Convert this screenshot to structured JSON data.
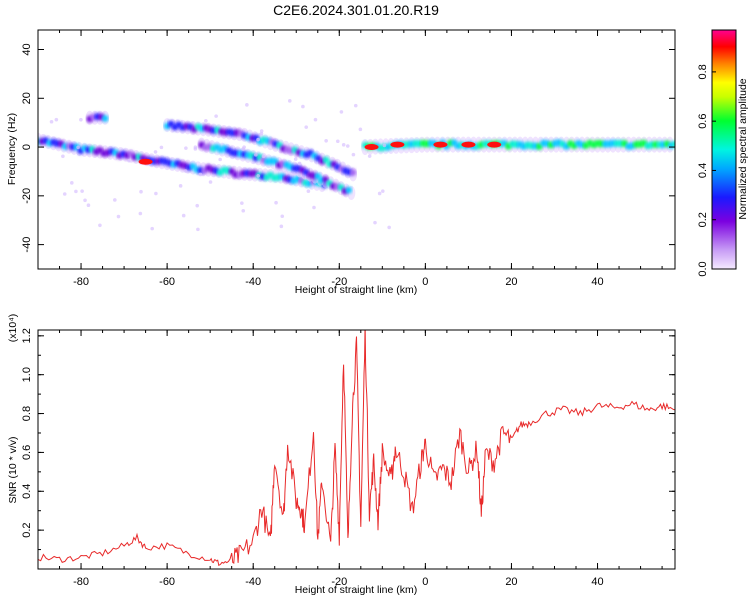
{
  "chart_data": [
    {
      "type": "heatmap",
      "title": "C2E6.2024.301.01.20.R19",
      "xlabel": "Height of straight line (km)",
      "ylabel": "Frequency (Hz)",
      "xlim": [
        -90,
        58
      ],
      "ylim": [
        -50,
        48
      ],
      "xticks": [
        -80,
        -60,
        -40,
        -20,
        0,
        20,
        40
      ],
      "yticks": [
        -40,
        -20,
        0,
        20,
        40
      ],
      "grid": false,
      "colorbar": {
        "label": "Normalized spectral amplitude",
        "range": [
          0.0,
          0.97
        ],
        "ticks": [
          0.0,
          0.2,
          0.4,
          0.6,
          0.8
        ],
        "colors": [
          "#f2e6ff",
          "#8a2be2",
          "#1a1aff",
          "#00e5ff",
          "#00ff40",
          "#ffff00",
          "#ff8000",
          "#ff0000",
          "#ff00b0"
        ]
      },
      "ridges": [
        {
          "x": [
            -90,
            -80,
            -70,
            -62,
            -52,
            -42,
            -34,
            -28,
            -23
          ],
          "y": [
            3,
            -1,
            -3,
            -6,
            -9,
            -11,
            -12,
            -14,
            -16
          ]
        },
        {
          "x": [
            -60,
            -50,
            -42,
            -35,
            -27,
            -20,
            -16
          ],
          "y": [
            9,
            7,
            5,
            1,
            -3,
            -8,
            -12
          ]
        },
        {
          "x": [
            -52,
            -45,
            -38,
            -30,
            -23,
            -17
          ],
          "y": [
            1,
            -2,
            -5,
            -9,
            -14,
            -19
          ]
        },
        {
          "x": [
            -78,
            -74
          ],
          "y": [
            12,
            12
          ]
        },
        {
          "x": [
            -14,
            0,
            15,
            30,
            45,
            58
          ],
          "y": [
            0,
            1,
            1,
            1,
            1,
            1
          ]
        }
      ],
      "hotspots": [
        {
          "x": -12.5,
          "y": 0
        },
        {
          "x": -6.5,
          "y": 1
        },
        {
          "x": 3.5,
          "y": 1
        },
        {
          "x": 10,
          "y": 1
        },
        {
          "x": 16,
          "y": 1
        },
        {
          "x": -65,
          "y": -6
        }
      ]
    },
    {
      "type": "line",
      "xlabel": "Height of straight line (km)",
      "ylabel": "SNR (10 * v/v)",
      "yscale_label": "(x10⁴)",
      "xlim": [
        -90,
        58
      ],
      "ylim": [
        0,
        1.23
      ],
      "xticks": [
        -80,
        -60,
        -40,
        -20,
        0,
        20,
        40
      ],
      "yticks": [
        0.2,
        0.4,
        0.6,
        0.8,
        1.0,
        1.2
      ],
      "series": [
        {
          "color": "#e82a2a",
          "x": [
            -90,
            -85,
            -80,
            -75,
            -70,
            -67,
            -65,
            -60,
            -55,
            -50,
            -48,
            -45,
            -43,
            -40,
            -38,
            -36,
            -35,
            -33,
            -32,
            -30,
            -29,
            -28,
            -26,
            -25,
            -24,
            -22,
            -21,
            -20,
            -19,
            -18,
            -17,
            -16,
            -15,
            -14,
            -13,
            -12,
            -11,
            -10,
            -8,
            -7,
            -5,
            -3,
            -1,
            0,
            2,
            4,
            6,
            8,
            10,
            12,
            13,
            14,
            16,
            18,
            20,
            22,
            24,
            28,
            32,
            36,
            40,
            44,
            48,
            52,
            55,
            58
          ],
          "y": [
            0.06,
            0.05,
            0.06,
            0.08,
            0.12,
            0.16,
            0.11,
            0.12,
            0.08,
            0.05,
            0.03,
            0.04,
            0.07,
            0.14,
            0.32,
            0.12,
            0.58,
            0.25,
            0.65,
            0.35,
            0.32,
            0.22,
            0.72,
            0.15,
            0.46,
            0.12,
            0.62,
            0.18,
            1.1,
            0.12,
            0.8,
            1.15,
            0.22,
            1.23,
            0.3,
            0.55,
            0.25,
            0.6,
            0.45,
            0.62,
            0.5,
            0.3,
            0.55,
            0.65,
            0.45,
            0.52,
            0.45,
            0.7,
            0.5,
            0.62,
            0.28,
            0.6,
            0.55,
            0.7,
            0.66,
            0.74,
            0.75,
            0.8,
            0.82,
            0.8,
            0.84,
            0.83,
            0.85,
            0.82,
            0.84,
            0.82
          ]
        }
      ]
    }
  ]
}
